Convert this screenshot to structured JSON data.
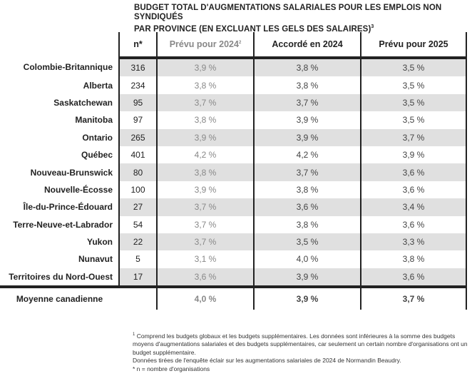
{
  "title_line1": "BUDGET TOTAL D'AUGMENTATIONS SALARIALES POUR LES EMPLOIS NON SYNDIQUÉS",
  "title_line2": "PAR PROVINCE (EN EXCLUANT LES GELS DES SALAIRES)",
  "title_sup": "3",
  "headers": {
    "n": "n*",
    "c1": "Prévu pour 2024",
    "c1_sup": "2",
    "c2": "Accordé en 2024",
    "c3": "Prévu pour 2025"
  },
  "rows": [
    {
      "label": "Colombie-Britannique",
      "n": "316",
      "c1": "3,9 %",
      "c2": "3,8 %",
      "c3": "3,5 %"
    },
    {
      "label": "Alberta",
      "n": "234",
      "c1": "3,8 %",
      "c2": "3,8 %",
      "c3": "3,5 %"
    },
    {
      "label": "Saskatchewan",
      "n": "95",
      "c1": "3,7 %",
      "c2": "3,7 %",
      "c3": "3,5 %"
    },
    {
      "label": "Manitoba",
      "n": "97",
      "c1": "3,8 %",
      "c2": "3,9 %",
      "c3": "3,5 %"
    },
    {
      "label": "Ontario",
      "n": "265",
      "c1": "3,9 %",
      "c2": "3,9 %",
      "c3": "3,7 %"
    },
    {
      "label": "Québec",
      "n": "401",
      "c1": "4,2 %",
      "c2": "4,2 %",
      "c3": "3,9 %"
    },
    {
      "label": "Nouveau-Brunswick",
      "n": "80",
      "c1": "3,8 %",
      "c2": "3,7 %",
      "c3": "3,6 %"
    },
    {
      "label": "Nouvelle-Écosse",
      "n": "100",
      "c1": "3,9 %",
      "c2": "3,8 %",
      "c3": "3,6 %"
    },
    {
      "label": "Île-du-Prince-Édouard",
      "n": "27",
      "c1": "3,7 %",
      "c2": "3,6 %",
      "c3": "3,4 %"
    },
    {
      "label": "Terre-Neuve-et-Labrador",
      "n": "54",
      "c1": "3,7 %",
      "c2": "3,8 %",
      "c3": "3,6 %"
    },
    {
      "label": "Yukon",
      "n": "22",
      "c1": "3,7 %",
      "c2": "3,5 %",
      "c3": "3,3 %"
    },
    {
      "label": "Nunavut",
      "n": "5",
      "c1": "3,1 %",
      "c2": "4,0 %",
      "c3": "3,8 %"
    },
    {
      "label": "Territoires du Nord-Ouest",
      "n": "17",
      "c1": "3,6 %",
      "c2": "3,9 %",
      "c3": "3,6 %"
    }
  ],
  "average": {
    "label": "Moyenne canadienne",
    "c1": "4,0 %",
    "c2": "3,9 %",
    "c3": "3,7 %"
  },
  "footnotes": {
    "f1_sup": "1",
    "f1": " Comprend les budgets globaux et les budgets supplémentaires. Les données sont inférieures à la somme des budgets moyens d'augmentations salariales et des budgets supplémentaires, car seulement un certain nombre d'organisations ont un budget supplémentaire.",
    "source": "Données tirées de l'enquête éclair sur les augmentations salariales de 2024 de Normandin Beaudry.",
    "n_def": " * n = nombre d'organisations"
  }
}
